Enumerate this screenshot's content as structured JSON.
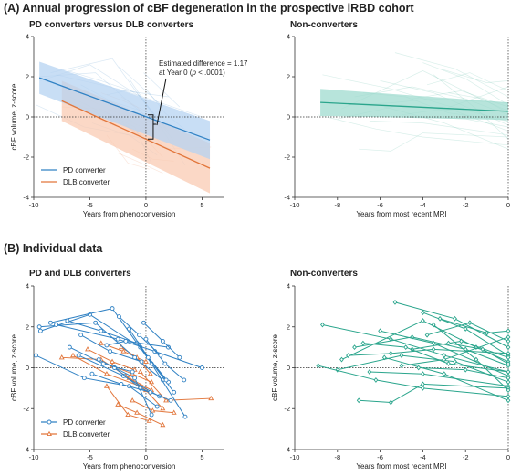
{
  "section_a_title": "(A) Annual progression of cBF degeneration in the prospective iRBD cohort",
  "section_b_title": "(B) Individual data",
  "colors": {
    "pd": "#3182c4",
    "dlb": "#e2763b",
    "non": "#2aa58c",
    "pd_band": "#b6d3f2",
    "dlb_band": "#f9cbb3",
    "non_band": "#9fdbcf"
  },
  "annotation": {
    "line1": "Estimated difference = 1.17",
    "line2_prefix": "at Year 0 (",
    "line2_p": "p",
    "line2_suffix": " < .0001)"
  },
  "chart_data": [
    {
      "id": "A-left",
      "type": "line",
      "title": "PD converters versus DLB converters",
      "xlabel": "Years from phenoconversion",
      "ylabel": "cBF volume, z-score",
      "xlim": [
        -10,
        7
      ],
      "ylim": [
        -4,
        4
      ],
      "xticks": [
        "-10",
        "-5",
        "0",
        "5"
      ],
      "yticks": [
        "-4",
        "-2",
        "0",
        "2",
        "4"
      ],
      "legend_position": "bottom-left",
      "series": [
        {
          "name": "PD converter",
          "x": [
            -9.5,
            5.7
          ],
          "y": [
            1.95,
            -1.15
          ],
          "band_upper": [
            2.75,
            -0.2
          ],
          "band_lower": [
            1.15,
            -2.1
          ]
        },
        {
          "name": "DLB converter",
          "x": [
            -7.5,
            5.7
          ],
          "y": [
            0.8,
            -2.55
          ],
          "band_upper": [
            1.8,
            -1.3
          ],
          "band_lower": [
            -0.2,
            -3.8
          ]
        }
      ]
    },
    {
      "id": "A-right",
      "type": "line",
      "title": "Non-converters",
      "xlabel": "Years from most recent MRI",
      "ylabel": "",
      "xlim": [
        -10,
        0
      ],
      "ylim": [
        -4,
        4
      ],
      "xticks": [
        "-10",
        "-8",
        "-6",
        "-4",
        "-2",
        "0"
      ],
      "yticks": [
        "-4",
        "-2",
        "0",
        "2",
        "4"
      ],
      "series": [
        {
          "x": [
            -8.8,
            0
          ],
          "y": [
            0.72,
            0.28
          ],
          "band_upper": [
            1.4,
            0.72
          ],
          "band_lower": [
            0.05,
            -0.15
          ]
        }
      ]
    },
    {
      "id": "B-left",
      "type": "line",
      "title": "PD and DLB converters",
      "xlabel": "Years from phenoconversion",
      "ylabel": "cBF volume, z-score",
      "xlim": [
        -10,
        7
      ],
      "ylim": [
        -4,
        4
      ],
      "xticks": [
        "-10",
        "-5",
        "0",
        "5"
      ],
      "yticks": [
        "-4",
        "-2",
        "0",
        "2",
        "4"
      ],
      "legend_position": "bottom-left",
      "series": [
        {
          "name": "PD converter",
          "subjects": [
            [
              [
                -9.5,
                2.0
              ],
              [
                -4.5,
                2.2
              ],
              [
                -1.0,
                0.5
              ],
              [
                1.5,
                -0.6
              ]
            ],
            [
              [
                -9.4,
                1.8
              ],
              [
                -5.0,
                2.6
              ],
              [
                -0.5,
                1.0
              ],
              [
                2.5,
                -1.2
              ]
            ],
            [
              [
                -8.5,
                2.2
              ],
              [
                -3.0,
                2.9
              ],
              [
                0.5,
                0.2
              ],
              [
                3.5,
                -2.4
              ]
            ],
            [
              [
                -9.8,
                0.6
              ],
              [
                -5.5,
                -0.5
              ],
              [
                -1.5,
                -0.9
              ],
              [
                1.0,
                -1.9
              ]
            ],
            [
              [
                -7.0,
                2.3
              ],
              [
                -4.0,
                1.8
              ],
              [
                -0.8,
                1.2
              ],
              [
                2.0,
                -0.7
              ]
            ],
            [
              [
                -8.0,
                2.1
              ],
              [
                -2.5,
                1.4
              ],
              [
                0.8,
                0.8
              ],
              [
                5.0,
                0.0
              ]
            ],
            [
              [
                -6.0,
                0.6
              ],
              [
                -2.0,
                -0.4
              ],
              [
                1.2,
                -1.4
              ]
            ],
            [
              [
                -3.5,
                1.1
              ],
              [
                -1.8,
                1.3
              ],
              [
                2.0,
                1.0
              ]
            ],
            [
              [
                -4.2,
                0.4
              ],
              [
                -1.0,
                -0.5
              ],
              [
                0.5,
                -2.3
              ]
            ],
            [
              [
                -0.2,
                2.2
              ],
              [
                1.5,
                1.3
              ],
              [
                3.0,
                0.5
              ]
            ],
            [
              [
                -2.8,
                0.0
              ],
              [
                -0.5,
                -1.0
              ],
              [
                2.2,
                -1.6
              ]
            ],
            [
              [
                -5.8,
                1.6
              ],
              [
                -3.2,
                0.8
              ],
              [
                -0.4,
                0.3
              ]
            ],
            [
              [
                -1.5,
                1.9
              ],
              [
                0.2,
                0.5
              ],
              [
                1.8,
                -0.6
              ]
            ],
            [
              [
                -6.8,
                1.0
              ],
              [
                -3.8,
                0.2
              ],
              [
                -1.2,
                -0.2
              ]
            ],
            [
              [
                -4.8,
                -0.3
              ],
              [
                -2.2,
                -0.8
              ],
              [
                0.4,
                -1.2
              ]
            ],
            [
              [
                0.0,
                1.4
              ],
              [
                1.7,
                0.2
              ],
              [
                3.4,
                -0.6
              ]
            ],
            [
              [
                -2.4,
                2.5
              ],
              [
                -0.6,
                1.6
              ],
              [
                1.3,
                0.6
              ]
            ]
          ]
        },
        {
          "name": "DLB converter",
          "subjects": [
            [
              [
                -7.5,
                0.5
              ],
              [
                -4.0,
                0.4
              ],
              [
                -1.5,
                -0.5
              ],
              [
                0.5,
                -1.1
              ]
            ],
            [
              [
                -6.5,
                0.6
              ],
              [
                -3.5,
                -0.3
              ],
              [
                -0.5,
                -0.9
              ]
            ],
            [
              [
                -4.0,
                1.2
              ],
              [
                -2.0,
                0.8
              ],
              [
                0.0,
                0.3
              ]
            ],
            [
              [
                -3.0,
                0.1
              ],
              [
                -1.2,
                -0.3
              ],
              [
                0.5,
                -0.7
              ]
            ],
            [
              [
                -2.5,
                -1.8
              ],
              [
                -0.8,
                -2.2
              ],
              [
                1.5,
                -2.8
              ]
            ],
            [
              [
                -1.8,
                -0.4
              ],
              [
                0.0,
                -1.1
              ],
              [
                1.5,
                -2.0
              ]
            ],
            [
              [
                -1.2,
                -1.6
              ],
              [
                0.6,
                -2.1
              ],
              [
                2.5,
                -2.2
              ]
            ],
            [
              [
                -0.5,
                -0.2
              ],
              [
                1.8,
                -1.6
              ],
              [
                5.8,
                -1.5
              ]
            ],
            [
              [
                -3.5,
                -0.9
              ],
              [
                -1.6,
                -2.3
              ],
              [
                0.3,
                -2.6
              ]
            ],
            [
              [
                -2.2,
                1.0
              ],
              [
                -0.8,
                0.5
              ],
              [
                0.4,
                -0.3
              ]
            ],
            [
              [
                -5.2,
                0.9
              ],
              [
                -3.0,
                0.3
              ],
              [
                -1.0,
                -0.1
              ]
            ]
          ]
        }
      ]
    },
    {
      "id": "B-right",
      "type": "line",
      "title": "Non-converters",
      "xlabel": "Years from most recent MRI",
      "ylabel": "cBF volume, z-score",
      "xlim": [
        -10,
        0
      ],
      "ylim": [
        -4,
        4
      ],
      "xticks": [
        "-10",
        "-8",
        "-6",
        "-4",
        "-2",
        "0"
      ],
      "yticks": [
        "-4",
        "-2",
        "0",
        "2",
        "4"
      ],
      "series": [
        {
          "subjects": [
            [
              [
                -8.7,
                2.1
              ],
              [
                -5.5,
                1.4
              ],
              [
                -3.0,
                0.6
              ],
              [
                0,
                -0.2
              ]
            ],
            [
              [
                -5.3,
                3.2
              ],
              [
                -2.5,
                2.4
              ],
              [
                0,
                1.0
              ]
            ],
            [
              [
                -4.0,
                2.7
              ],
              [
                -2.0,
                1.9
              ],
              [
                0,
                0.6
              ]
            ],
            [
              [
                -7.2,
                1.0
              ],
              [
                -4.5,
                1.5
              ],
              [
                -2.0,
                0.9
              ],
              [
                0,
                0.1
              ]
            ],
            [
              [
                -6.0,
                1.8
              ],
              [
                -3.5,
                1.2
              ],
              [
                0,
                -0.4
              ]
            ],
            [
              [
                -7.8,
                0.4
              ],
              [
                -4.0,
                2.3
              ],
              [
                -1.5,
                1.0
              ],
              [
                0,
                0.3
              ]
            ],
            [
              [
                -8.0,
                -0.1
              ],
              [
                -5.0,
                0.6
              ],
              [
                -2.5,
                0.3
              ],
              [
                0,
                -0.7
              ]
            ],
            [
              [
                -6.5,
                -0.2
              ],
              [
                -4.0,
                -0.3
              ],
              [
                0,
                -0.9
              ]
            ],
            [
              [
                -7.5,
                0.6
              ],
              [
                -5.5,
                0.7
              ],
              [
                -3.5,
                0.9
              ],
              [
                0,
                0.7
              ]
            ],
            [
              [
                -5.0,
                0.1
              ],
              [
                -3.0,
                0.4
              ],
              [
                0,
                1.5
              ]
            ],
            [
              [
                -3.8,
                1.6
              ],
              [
                -1.8,
                2.2
              ],
              [
                0,
                1.3
              ]
            ],
            [
              [
                -4.5,
                0.9
              ],
              [
                -2.2,
                1.3
              ],
              [
                0,
                0.5
              ]
            ],
            [
              [
                -3.2,
                2.4
              ],
              [
                -1.0,
                1.7
              ],
              [
                0,
                1.8
              ]
            ],
            [
              [
                -8.9,
                0.1
              ],
              [
                -6.2,
                -0.6
              ],
              [
                -4.0,
                -1.0
              ],
              [
                0,
                -1.4
              ]
            ],
            [
              [
                -7.0,
                -1.6
              ],
              [
                -5.5,
                -1.7
              ],
              [
                -4.0,
                -0.8
              ],
              [
                0,
                -1.0
              ]
            ],
            [
              [
                -5.8,
                0.5
              ],
              [
                -3.0,
                -0.3
              ],
              [
                0,
                -1.6
              ]
            ],
            [
              [
                -4.2,
                0.0
              ],
              [
                -2.0,
                -0.1
              ],
              [
                0,
                -0.5
              ]
            ],
            [
              [
                -2.8,
                1.2
              ],
              [
                -1.2,
                0.9
              ],
              [
                0,
                0.2
              ]
            ],
            [
              [
                -3.5,
                2.1
              ],
              [
                -1.5,
                0.4
              ],
              [
                0,
                -1.1
              ]
            ],
            [
              [
                -6.8,
                1.2
              ],
              [
                -4.8,
                1.0
              ],
              [
                -2.8,
                0.2
              ],
              [
                0,
                -0.2
              ]
            ]
          ]
        }
      ]
    }
  ]
}
